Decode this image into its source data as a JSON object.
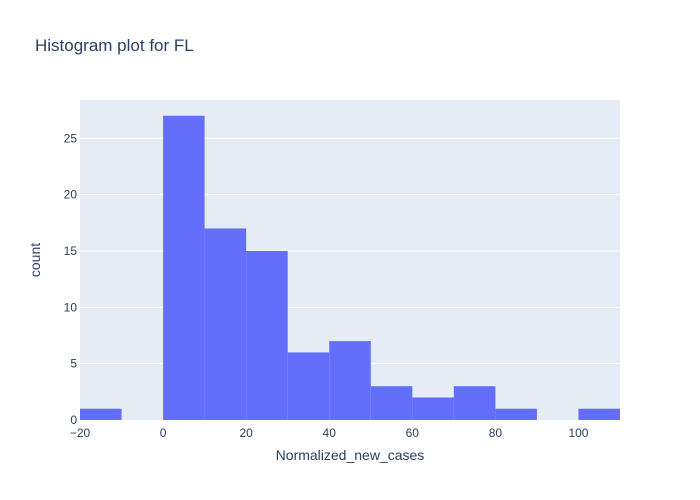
{
  "chart_data": {
    "type": "bar",
    "title": "Histogram plot for FL",
    "xlabel": "Normalized_new_cases",
    "ylabel": "count",
    "xlim": [
      -20,
      110
    ],
    "ylim": [
      0,
      28.4
    ],
    "x_ticks": [
      -20,
      0,
      20,
      40,
      60,
      80,
      100
    ],
    "y_ticks": [
      0,
      5,
      10,
      15,
      20,
      25
    ],
    "bins": [
      {
        "x0": -20,
        "x1": -10,
        "count": 1
      },
      {
        "x0": -10,
        "x1": 0,
        "count": 0
      },
      {
        "x0": 0,
        "x1": 10,
        "count": 27
      },
      {
        "x0": 10,
        "x1": 20,
        "count": 17
      },
      {
        "x0": 20,
        "x1": 30,
        "count": 15
      },
      {
        "x0": 30,
        "x1": 40,
        "count": 6
      },
      {
        "x0": 40,
        "x1": 50,
        "count": 7
      },
      {
        "x0": 50,
        "x1": 60,
        "count": 3
      },
      {
        "x0": 60,
        "x1": 70,
        "count": 2
      },
      {
        "x0": 70,
        "x1": 80,
        "count": 3
      },
      {
        "x0": 80,
        "x1": 90,
        "count": 1
      },
      {
        "x0": 90,
        "x1": 100,
        "count": 0
      },
      {
        "x0": 100,
        "x1": 110,
        "count": 1
      }
    ],
    "colors": {
      "bar": "#636efa",
      "plot_background": "#e5ecf6",
      "grid": "#ffffff"
    },
    "grid": true
  }
}
